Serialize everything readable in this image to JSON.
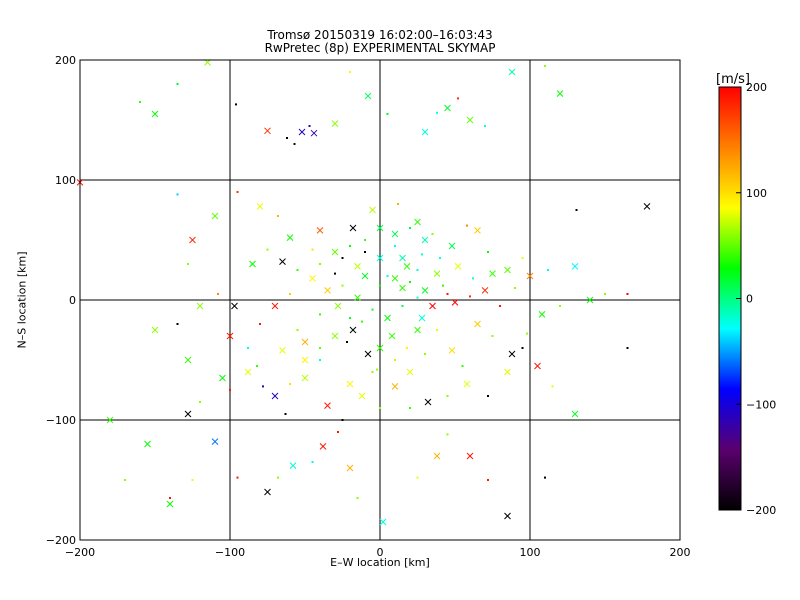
{
  "chart_data": {
    "type": "scatter",
    "title": "Tromsø 20150319 16:02:00–16:03:43",
    "subtitle": "RwPretec (8p) EXPERIMENTAL SKYMAP",
    "xlabel": "E–W location [km]",
    "ylabel": "N–S location [km]",
    "xlim": [
      -200,
      200
    ],
    "ylim": [
      -200,
      200
    ],
    "xticks": [
      "−200",
      "−100",
      "0",
      "100",
      "200"
    ],
    "yticks": [
      "−200",
      "−100",
      "0",
      "100",
      "200"
    ],
    "grid": true,
    "colorbar": {
      "title": "[m/s]",
      "range": [
        -200,
        200
      ],
      "ticks": [
        "−200",
        "−100",
        "0",
        "100",
        "200"
      ],
      "colors": [
        "#000000",
        "#5a006e",
        "#0000ff",
        "#00ffff",
        "#00ff00",
        "#ffff00",
        "#ff8000",
        "#ff0000"
      ]
    },
    "markers": [
      "cross",
      "dot"
    ],
    "points": [
      [
        -200,
        98,
        190
      ],
      [
        -160,
        165,
        40
      ],
      [
        -150,
        155,
        30
      ],
      [
        -135,
        180,
        20
      ],
      [
        -115,
        198,
        60
      ],
      [
        -96,
        163,
        -200
      ],
      [
        -75,
        141,
        180
      ],
      [
        -62,
        135,
        -200
      ],
      [
        -52,
        140,
        -110
      ],
      [
        -47,
        145,
        -120
      ],
      [
        -44,
        139,
        -120
      ],
      [
        -57,
        130,
        -180
      ],
      [
        -30,
        147,
        60
      ],
      [
        -20,
        190,
        90
      ],
      [
        -8,
        170,
        10
      ],
      [
        5,
        155,
        20
      ],
      [
        30,
        140,
        -20
      ],
      [
        38,
        156,
        -30
      ],
      [
        45,
        160,
        20
      ],
      [
        52,
        168,
        180
      ],
      [
        60,
        150,
        50
      ],
      [
        70,
        145,
        -20
      ],
      [
        88,
        190,
        -10
      ],
      [
        110,
        195,
        60
      ],
      [
        120,
        172,
        30
      ],
      [
        -135,
        88,
        -40
      ],
      [
        -125,
        50,
        180
      ],
      [
        -128,
        30,
        60
      ],
      [
        -110,
        70,
        50
      ],
      [
        -95,
        90,
        180
      ],
      [
        -80,
        78,
        80
      ],
      [
        -68,
        70,
        120
      ],
      [
        -60,
        52,
        30
      ],
      [
        -45,
        42,
        100
      ],
      [
        -40,
        58,
        160
      ],
      [
        -25,
        35,
        -200
      ],
      [
        -18,
        60,
        -200
      ],
      [
        -10,
        40,
        -200
      ],
      [
        -5,
        75,
        70
      ],
      [
        12,
        80,
        120
      ],
      [
        25,
        65,
        40
      ],
      [
        35,
        55,
        60
      ],
      [
        48,
        45,
        10
      ],
      [
        58,
        62,
        140
      ],
      [
        65,
        58,
        110
      ],
      [
        72,
        40,
        30
      ],
      [
        85,
        25,
        50
      ],
      [
        95,
        35,
        80
      ],
      [
        -150,
        -25,
        60
      ],
      [
        -135,
        -20,
        -200
      ],
      [
        -120,
        -5,
        60
      ],
      [
        -108,
        5,
        140
      ],
      [
        -97,
        -5,
        -200
      ],
      [
        -80,
        -20,
        190
      ],
      [
        -70,
        -5,
        190
      ],
      [
        -60,
        5,
        110
      ],
      [
        -45,
        18,
        90
      ],
      [
        -30,
        22,
        -200
      ],
      [
        -15,
        28,
        70
      ],
      [
        5,
        20,
        -20
      ],
      [
        15,
        10,
        40
      ],
      [
        25,
        2,
        -20
      ],
      [
        35,
        -5,
        200
      ],
      [
        45,
        5,
        190
      ],
      [
        50,
        -2,
        200
      ],
      [
        60,
        3,
        180
      ],
      [
        70,
        8,
        180
      ],
      [
        80,
        -5,
        190
      ],
      [
        100,
        20,
        140
      ],
      [
        112,
        25,
        -20
      ],
      [
        130,
        28,
        -30
      ],
      [
        165,
        5,
        200
      ],
      [
        178,
        78,
        -200
      ],
      [
        131,
        75,
        -200
      ],
      [
        -140,
        -170,
        30
      ],
      [
        -125,
        -150,
        80
      ],
      [
        -110,
        -118,
        -60
      ],
      [
        -100,
        -75,
        190
      ],
      [
        -88,
        -60,
        80
      ],
      [
        -78,
        -72,
        -120
      ],
      [
        -70,
        -80,
        -110
      ],
      [
        -63,
        -95,
        -200
      ],
      [
        -50,
        -65,
        70
      ],
      [
        -40,
        -50,
        -20
      ],
      [
        -35,
        -88,
        190
      ],
      [
        -25,
        -100,
        -200
      ],
      [
        -12,
        -80,
        80
      ],
      [
        -5,
        -60,
        60
      ],
      [
        10,
        -72,
        120
      ],
      [
        20,
        -90,
        40
      ],
      [
        32,
        -85,
        -200
      ],
      [
        45,
        -80,
        60
      ],
      [
        58,
        -70,
        80
      ],
      [
        72,
        -80,
        -200
      ],
      [
        85,
        -60,
        80
      ],
      [
        95,
        -40,
        -200
      ],
      [
        105,
        -55,
        190
      ],
      [
        115,
        -72,
        80
      ],
      [
        130,
        -95,
        20
      ],
      [
        165,
        -40,
        -200
      ],
      [
        -155,
        -120,
        30
      ],
      [
        -170,
        -150,
        60
      ],
      [
        -180,
        -100,
        40
      ],
      [
        -140,
        -165,
        190
      ],
      [
        -128,
        -95,
        -200
      ],
      [
        -95,
        -148,
        190
      ],
      [
        -75,
        -160,
        -200
      ],
      [
        -68,
        -148,
        60
      ],
      [
        -58,
        -138,
        -20
      ],
      [
        -45,
        -135,
        -20
      ],
      [
        -38,
        -122,
        190
      ],
      [
        -28,
        -110,
        190
      ],
      [
        -20,
        -140,
        120
      ],
      [
        -15,
        -165,
        60
      ],
      [
        2,
        -185,
        -20
      ],
      [
        25,
        -148,
        80
      ],
      [
        38,
        -130,
        120
      ],
      [
        45,
        -112,
        60
      ],
      [
        60,
        -130,
        190
      ],
      [
        72,
        -150,
        190
      ],
      [
        85,
        -180,
        -200
      ],
      [
        110,
        -148,
        -200
      ],
      [
        -100,
        -30,
        190
      ],
      [
        -88,
        -40,
        -20
      ],
      [
        -128,
        -50,
        40
      ],
      [
        -120,
        -85,
        60
      ],
      [
        -105,
        -65,
        30
      ],
      [
        -82,
        -55,
        40
      ],
      [
        -65,
        -42,
        80
      ],
      [
        -55,
        -25,
        60
      ],
      [
        -50,
        -35,
        120
      ],
      [
        -40,
        -12,
        40
      ],
      [
        -28,
        -5,
        60
      ],
      [
        -22,
        -35,
        -200
      ],
      [
        -18,
        -25,
        -200
      ],
      [
        -12,
        -18,
        40
      ],
      [
        -8,
        -45,
        -200
      ],
      [
        -2,
        -58,
        60
      ],
      [
        8,
        -30,
        40
      ],
      [
        18,
        -40,
        90
      ],
      [
        28,
        -15,
        -20
      ],
      [
        38,
        -25,
        80
      ],
      [
        48,
        -42,
        100
      ],
      [
        55,
        -55,
        40
      ],
      [
        65,
        -20,
        110
      ],
      [
        75,
        -30,
        60
      ],
      [
        88,
        -45,
        -200
      ],
      [
        98,
        -28,
        60
      ],
      [
        108,
        -12,
        30
      ],
      [
        120,
        -5,
        60
      ],
      [
        140,
        0,
        30
      ],
      [
        150,
        5,
        60
      ],
      [
        -85,
        30,
        30
      ],
      [
        -75,
        42,
        60
      ],
      [
        -65,
        32,
        -200
      ],
      [
        -55,
        25,
        40
      ],
      [
        -35,
        8,
        110
      ],
      [
        -25,
        12,
        60
      ],
      [
        -15,
        2,
        40
      ],
      [
        -10,
        50,
        40
      ],
      [
        0,
        35,
        -20
      ],
      [
        10,
        45,
        -30
      ],
      [
        18,
        28,
        40
      ],
      [
        28,
        38,
        -20
      ],
      [
        38,
        22,
        60
      ],
      [
        42,
        12,
        40
      ],
      [
        52,
        28,
        80
      ],
      [
        62,
        18,
        -20
      ],
      [
        75,
        22,
        40
      ],
      [
        90,
        10,
        60
      ],
      [
        -10,
        20,
        20
      ],
      [
        0,
        12,
        30
      ],
      [
        10,
        18,
        40
      ],
      [
        20,
        15,
        30
      ],
      [
        30,
        8,
        20
      ],
      [
        -5,
        -8,
        20
      ],
      [
        5,
        -15,
        30
      ],
      [
        15,
        -5,
        10
      ],
      [
        25,
        -25,
        40
      ],
      [
        -20,
        -15,
        20
      ],
      [
        -30,
        -30,
        60
      ],
      [
        -40,
        -40,
        50
      ],
      [
        0,
        -40,
        40
      ],
      [
        10,
        -50,
        70
      ],
      [
        20,
        -60,
        80
      ],
      [
        30,
        -45,
        60
      ],
      [
        -50,
        -50,
        90
      ],
      [
        -60,
        -70,
        100
      ],
      [
        -20,
        -70,
        90
      ],
      [
        0,
        -90,
        60
      ],
      [
        10,
        55,
        10
      ],
      [
        20,
        60,
        20
      ],
      [
        30,
        50,
        -10
      ],
      [
        40,
        35,
        -20
      ],
      [
        0,
        60,
        10
      ],
      [
        -20,
        45,
        30
      ],
      [
        -30,
        40,
        50
      ],
      [
        -40,
        30,
        60
      ],
      [
        15,
        35,
        -10
      ],
      [
        25,
        25,
        -20
      ]
    ]
  }
}
